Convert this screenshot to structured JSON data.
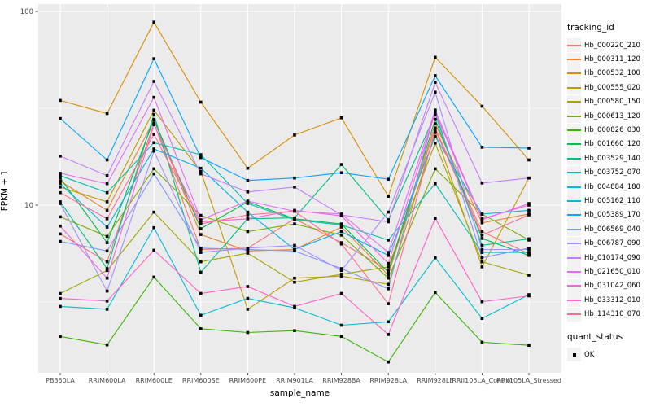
{
  "chart_data": {
    "type": "line",
    "title": "",
    "xlabel": "sample_name",
    "ylabel": "FPKM + 1",
    "yscale": "log10",
    "yticks": [
      10,
      100
    ],
    "ytick_labels": [
      "10",
      "100"
    ],
    "yminor_gridlines": [
      3.16,
      31.6
    ],
    "ylim": [
      1.26,
      110
    ],
    "grid": true,
    "legend_position": "right",
    "panel_bg": "#EBEBEB",
    "grid_color": "#FFFFFF",
    "tick_label_color": "#4D4D4D",
    "point_color": "#000000",
    "point_shape": "square",
    "x_categories": [
      "PB350LA",
      "RRIM600LA",
      "RRIM600LE",
      "RRIM600SE",
      "RRIM600PE",
      "RRIM901LA",
      "RRIM928BA",
      "RRIM928LA",
      "RRIM928LE",
      "RRII105LA_Control",
      "RRII105LA_Stressed"
    ],
    "series": [
      {
        "name": "Hb_000220_210",
        "color": "#F8766D",
        "values": [
          7.1,
          5.1,
          26.5,
          5.9,
          6.0,
          8.5,
          6.4,
          4.6,
          25.0,
          7.3,
          5.6
        ]
      },
      {
        "name": "Hb_000311_120",
        "color": "#EA8331",
        "values": [
          13.3,
          9.4,
          27.5,
          7.05,
          5.8,
          5.9,
          7.7,
          4.35,
          26.3,
          8.1,
          9.0
        ]
      },
      {
        "name": "Hb_000532_100",
        "color": "#D89000",
        "values": [
          34.7,
          29.7,
          88.0,
          34.0,
          15.5,
          23.0,
          28.2,
          11.1,
          58.0,
          32.4,
          17.1
        ]
      },
      {
        "name": "Hb_000555_020",
        "color": "#C09B00",
        "values": [
          12.4,
          10.4,
          30.9,
          14.9,
          2.9,
          4.2,
          4.3,
          3.9,
          23.7,
          4.8,
          13.8
        ]
      },
      {
        "name": "Hb_000580_150",
        "color": "#A3A500",
        "values": [
          3.5,
          4.6,
          9.2,
          5.1,
          5.65,
          4.0,
          4.4,
          4.8,
          20.9,
          5.1,
          4.35
        ]
      },
      {
        "name": "Hb_000613_120",
        "color": "#7CAE00",
        "values": [
          8.7,
          6.9,
          15.4,
          8.85,
          7.3,
          8.0,
          7.0,
          4.2,
          15.4,
          8.98,
          6.6
        ]
      },
      {
        "name": "Hb_000826_030",
        "color": "#39B600",
        "values": [
          2.1,
          1.9,
          4.25,
          2.3,
          2.2,
          2.25,
          2.1,
          1.55,
          3.54,
          1.96,
          1.89
        ]
      },
      {
        "name": "Hb_001660_120",
        "color": "#00BB4E",
        "values": [
          13.8,
          6.4,
          27.7,
          7.55,
          10.4,
          8.5,
          8.0,
          4.5,
          27.7,
          6.73,
          5.5
        ]
      },
      {
        "name": "Hb_003529_140",
        "color": "#00C087",
        "values": [
          10.4,
          4.7,
          29.4,
          4.5,
          8.5,
          8.6,
          16.2,
          8.4,
          29.4,
          6.2,
          6.7
        ]
      },
      {
        "name": "Hb_003752_070",
        "color": "#00C0B2",
        "values": [
          14.2,
          11.6,
          21.0,
          18.2,
          10.2,
          8.4,
          7.9,
          6.6,
          12.9,
          5.7,
          5.7
        ]
      },
      {
        "name": "Hb_004884_180",
        "color": "#00BCD8",
        "values": [
          3.0,
          2.9,
          7.65,
          2.7,
          3.3,
          2.95,
          2.4,
          2.5,
          5.35,
          2.6,
          3.45
        ]
      },
      {
        "name": "Hb_005162_110",
        "color": "#00B3F1",
        "values": [
          12.9,
          7.7,
          19.5,
          15.5,
          9.2,
          5.9,
          7.3,
          5.5,
          22.6,
          9.0,
          9.4
        ]
      },
      {
        "name": "Hb_005389_170",
        "color": "#00A6FF",
        "values": [
          28.0,
          17.1,
          57.0,
          17.6,
          13.4,
          13.8,
          14.7,
          13.6,
          46.6,
          19.9,
          19.7
        ]
      },
      {
        "name": "Hb_006569_040",
        "color": "#7E96FF",
        "values": [
          6.5,
          5.8,
          14.5,
          6.0,
          5.9,
          5.8,
          4.7,
          3.7,
          31.0,
          5.35,
          6.0
        ]
      },
      {
        "name": "Hb_006787_090",
        "color": "#A98CFF",
        "values": [
          10.2,
          3.6,
          19.0,
          5.7,
          6.0,
          6.2,
          4.6,
          9.2,
          38.3,
          5.9,
          5.9
        ]
      },
      {
        "name": "Hb_010174_090",
        "color": "#C77CFF",
        "values": [
          17.9,
          14.2,
          43.5,
          14.5,
          11.7,
          12.4,
          8.9,
          8.2,
          43.0,
          13.0,
          13.8
        ]
      },
      {
        "name": "Hb_021650_010",
        "color": "#E36EF6",
        "values": [
          14.6,
          12.9,
          36.0,
          8.4,
          10.5,
          9.3,
          9.0,
          5.7,
          30.9,
          8.5,
          10.0
        ]
      },
      {
        "name": "Hb_031042_060",
        "color": "#F763DF",
        "values": [
          7.8,
          4.2,
          26.0,
          8.2,
          8.5,
          9.4,
          8.8,
          5.0,
          30.0,
          8.4,
          10.2
        ]
      },
      {
        "name": "Hb_033312_010",
        "color": "#FF61C7",
        "values": [
          3.3,
          3.2,
          5.85,
          3.5,
          3.8,
          3.0,
          3.5,
          2.15,
          8.55,
          3.17,
          3.4
        ]
      },
      {
        "name": "Hb_114310_070",
        "color": "#FF6C92",
        "values": [
          11.6,
          8.5,
          23.2,
          8.0,
          8.9,
          9.3,
          6.3,
          3.1,
          24.5,
          7.0,
          8.9
        ]
      }
    ],
    "legend": {
      "tracking_title": "tracking_id",
      "quant_title": "quant_status",
      "quant_items": [
        {
          "label": "OK",
          "marker": "black-square"
        }
      ]
    }
  }
}
